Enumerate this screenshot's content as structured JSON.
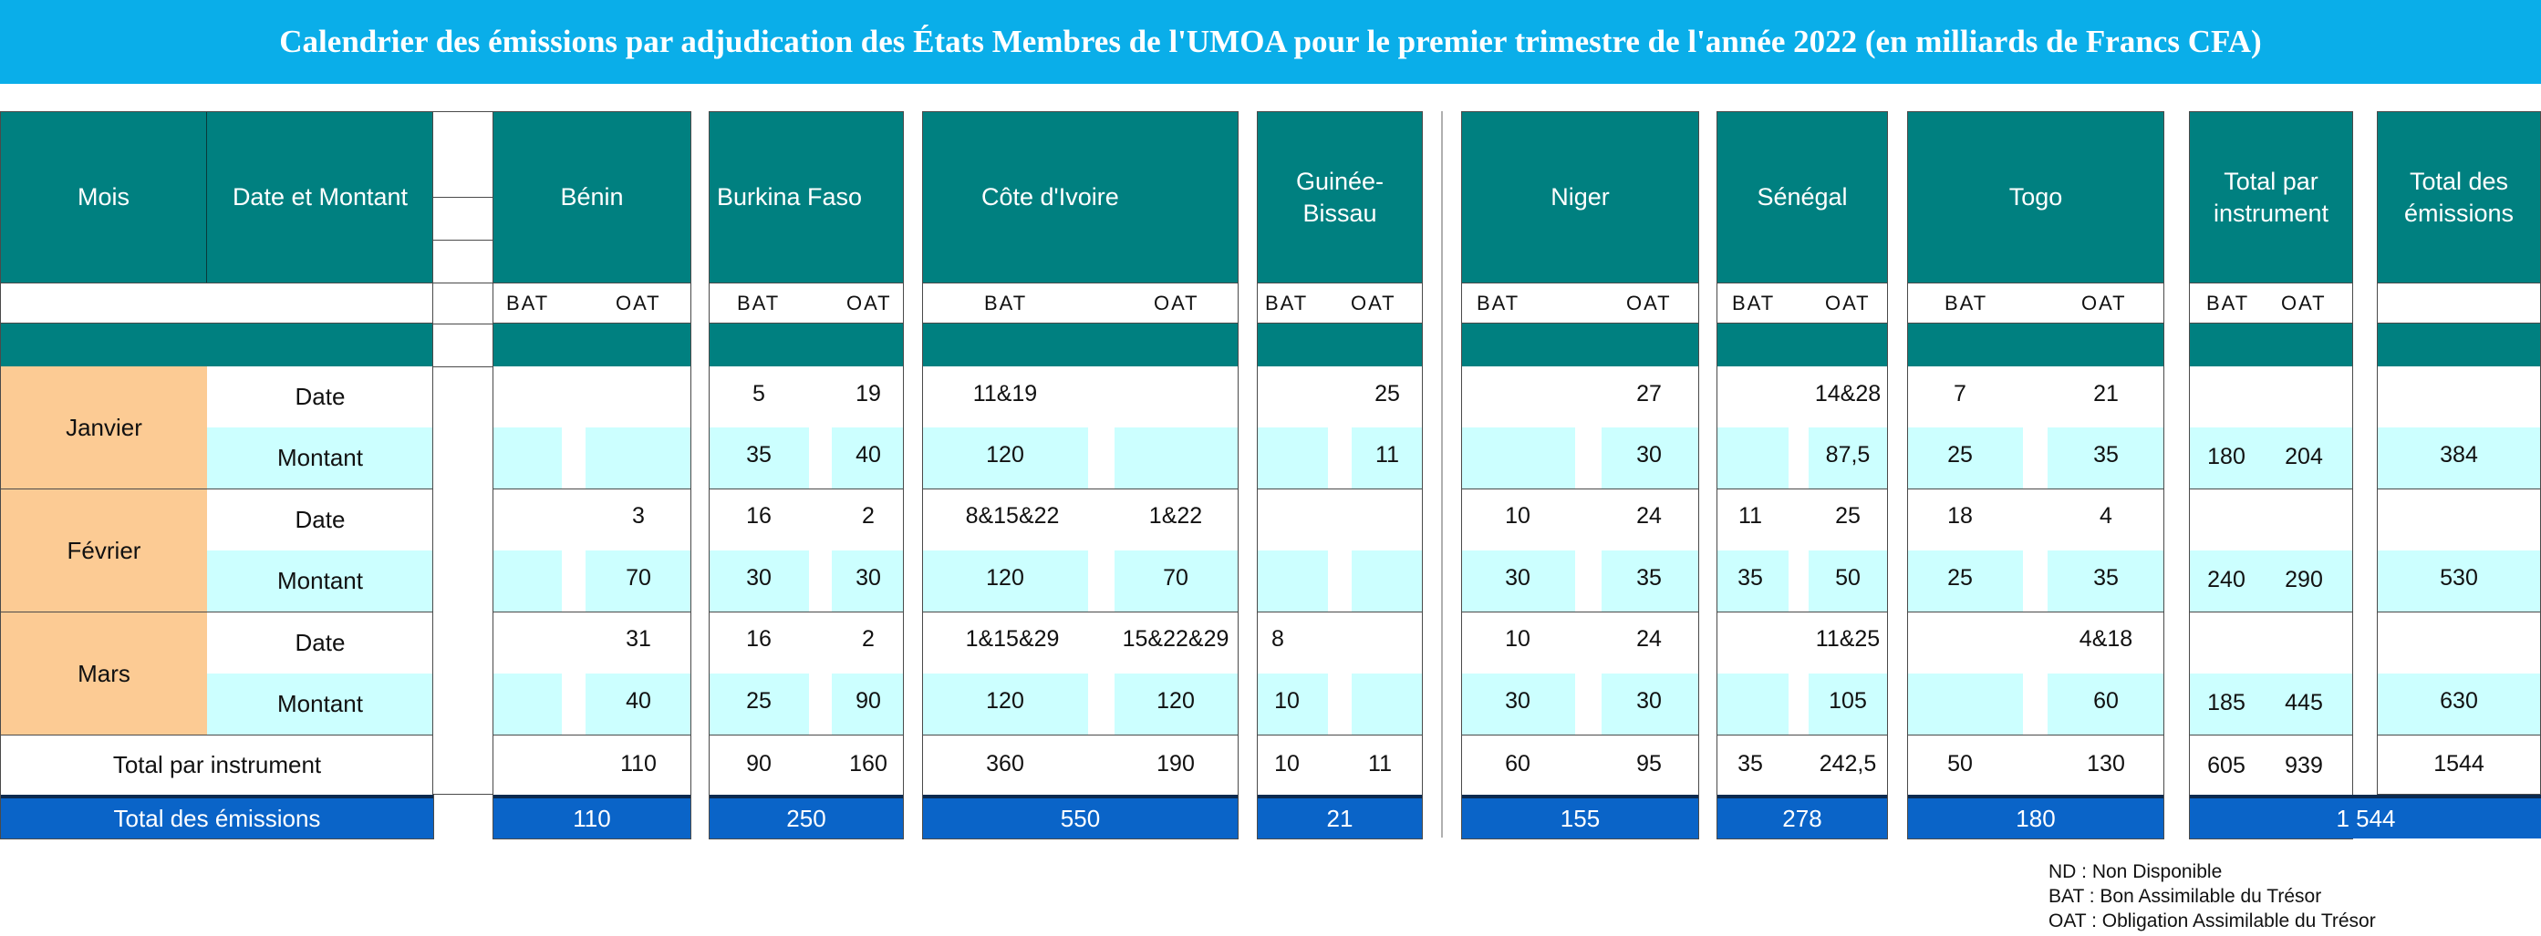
{
  "title": "Calendrier des émissions par adjudication des États Membres de l'UMOA pour le premier trimestre de l'année 2022 (en milliards de Francs CFA)",
  "headers": {
    "mois": "Mois",
    "date_montant": "Date et Montant",
    "benin": "Bénin",
    "burkina": "Burkina Faso",
    "ci": "Côte d'Ivoire",
    "gb_line1": "Guinée-",
    "gb_line2": "Bissau",
    "niger": "Niger",
    "senegal": "Sénégal",
    "togo": "Togo",
    "tpi_line1": "Total par",
    "tpi_line2": "instrument",
    "te_line1": "Total des",
    "te_line2": "émissions",
    "bat": "BAT",
    "oat": "OAT"
  },
  "rows": {
    "janvier": "Janvier",
    "fevrier": "Février",
    "mars": "Mars",
    "date": "Date",
    "montant": "Montant",
    "total_instrument": "Total par instrument",
    "total_emissions": "Total des émissions"
  },
  "benin": {
    "jan_date_oat": "",
    "feb_date_oat": "3",
    "feb_mont_oat": "70",
    "mar_date_oat": "31",
    "mar_mont_oat": "40",
    "total_oat": "110",
    "grand": "110"
  },
  "burkina": {
    "jan_date_bat": "5",
    "jan_date_oat": "19",
    "jan_mont_bat": "35",
    "jan_mont_oat": "40",
    "feb_date_bat": "16",
    "feb_date_oat": "2",
    "feb_mont_bat": "30",
    "feb_mont_oat": "30",
    "mar_date_bat": "16",
    "mar_date_oat": "2",
    "mar_mont_bat": "25",
    "mar_mont_oat": "90",
    "total_bat": "90",
    "total_oat": "160",
    "grand": "250"
  },
  "ci": {
    "jan_date_bat": "11&19",
    "jan_mont_bat": "120",
    "feb_date_bat": "8&15&22",
    "feb_date_oat": "1&22",
    "feb_mont_bat": "120",
    "feb_mont_oat": "70",
    "mar_date_bat": "1&15&29",
    "mar_date_oat": "15&22&29",
    "mar_mont_bat": "120",
    "mar_mont_oat": "120",
    "total_bat": "360",
    "total_oat": "190",
    "grand": "550"
  },
  "gb": {
    "jan_date_oat": "25",
    "jan_mont_oat": "11",
    "mar_date_bat": "8",
    "mar_mont_bat": "10",
    "total_bat": "10",
    "total_oat": "11",
    "grand": "21"
  },
  "niger": {
    "jan_date_oat": "27",
    "jan_mont_oat": "30",
    "feb_date_bat": "10",
    "feb_date_oat": "24",
    "feb_mont_bat": "30",
    "feb_mont_oat": "35",
    "mar_date_bat": "10",
    "mar_date_oat": "24",
    "mar_mont_bat": "30",
    "mar_mont_oat": "30",
    "total_bat": "60",
    "total_oat": "95",
    "grand": "155"
  },
  "senegal": {
    "jan_date_oat": "14&28",
    "jan_mont_oat": "87,5",
    "feb_date_bat": "11",
    "feb_date_oat": "25",
    "feb_mont_bat": "35",
    "feb_mont_oat": "50",
    "mar_date_oat": "11&25",
    "mar_mont_oat": "105",
    "total_bat": "35",
    "total_oat": "242,5",
    "grand": "278"
  },
  "togo": {
    "jan_date_bat": "7",
    "jan_date_oat": "21",
    "jan_mont_bat": "25",
    "jan_mont_oat": "35",
    "feb_date_bat": "18",
    "feb_date_oat": "4",
    "feb_mont_bat": "25",
    "feb_mont_oat": "35",
    "mar_date_oat": "4&18",
    "mar_mont_oat": "60",
    "total_bat": "50",
    "total_oat": "130",
    "grand": "180"
  },
  "tpi": {
    "jan_bat": "180",
    "jan_oat": "204",
    "feb_bat": "240",
    "feb_oat": "290",
    "mar_bat": "185",
    "mar_oat": "445",
    "total_bat": "605",
    "total_oat": "939",
    "grand": "1 544"
  },
  "te": {
    "jan": "384",
    "feb": "530",
    "mar": "630",
    "total": "1544"
  },
  "legend": {
    "nd": "ND : Non Disponible",
    "bat": "BAT : Bon Assimilable du Trésor",
    "oat": "OAT : Obligation Assimilable du Trésor"
  }
}
